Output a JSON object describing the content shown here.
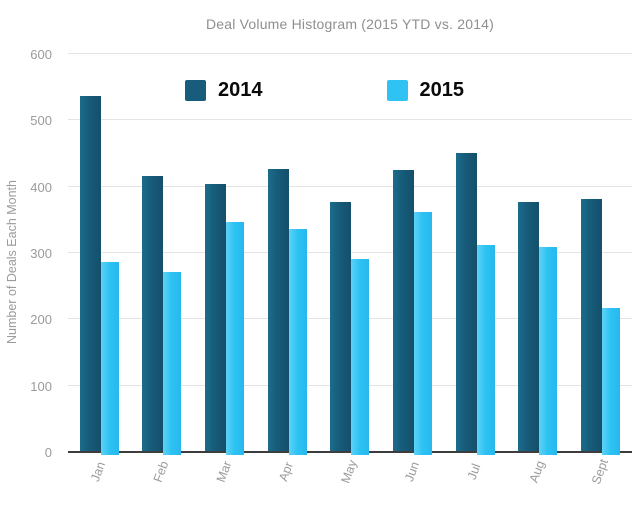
{
  "title": "Deal Volume Histogram (2015 YTD vs. 2014)",
  "chart_data": {
    "type": "bar",
    "categories": [
      "Jan",
      "Feb",
      "Mar",
      "Apr",
      "May",
      "Jun",
      "Jul",
      "Aug",
      "Sept"
    ],
    "series": [
      {
        "name": "2014",
        "color": "#175d7b",
        "values": [
          535,
          415,
          402,
          425,
          375,
          423,
          450,
          375,
          380
        ]
      },
      {
        "name": "2015",
        "color": "#2ec3f3",
        "values": [
          285,
          270,
          345,
          335,
          290,
          360,
          310,
          308,
          215
        ]
      }
    ],
    "title": "Deal Volume Histogram (2015 YTD vs. 2014)",
    "xlabel": "",
    "ylabel": "Number of Deals Each Month",
    "ylim": [
      0,
      600
    ],
    "yticks": [
      0,
      100,
      200,
      300,
      400,
      500,
      600
    ],
    "grid": true,
    "legend_position": "top-inside"
  },
  "colors": {
    "series_2014": "#175d7b",
    "series_2015": "#2ec3f3",
    "gridline": "#e4e4e4",
    "axis_line": "#3d3d3d",
    "tick_text": "#9b9b9b",
    "title_text": "#8f8f8f"
  }
}
